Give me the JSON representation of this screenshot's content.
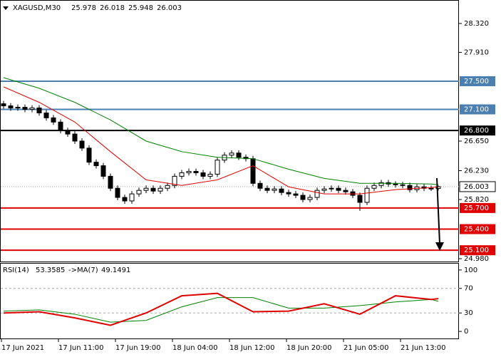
{
  "chart_data": {
    "type": "candlestick",
    "symbol": "XAGUSD,M30",
    "open": [
      27.18,
      27.15,
      27.12,
      27.13,
      27.1,
      27.12,
      27.05,
      26.98,
      26.92,
      26.8,
      26.75,
      26.65,
      26.55,
      26.35,
      26.3,
      26.15,
      25.98,
      25.85,
      25.8,
      25.9,
      25.95,
      25.98,
      25.94,
      25.98,
      26.02,
      26.15,
      26.2,
      26.22,
      26.2,
      26.15,
      26.18,
      26.38,
      26.45,
      26.48,
      26.42,
      26.4,
      26.05,
      25.98,
      25.95,
      25.97,
      25.92,
      25.9,
      25.88,
      25.82,
      25.85,
      25.95,
      25.97,
      25.98,
      25.95,
      25.93,
      25.88,
      25.78,
      25.98,
      26.02,
      26.06,
      26.04,
      26.03,
      26.02,
      25.96,
      26.0,
      25.98,
      25.978
    ],
    "high": [
      27.22,
      27.19,
      27.17,
      27.17,
      27.16,
      27.16,
      27.09,
      27.02,
      26.96,
      26.84,
      26.79,
      26.69,
      26.59,
      26.39,
      26.34,
      26.19,
      26.02,
      25.89,
      25.94,
      25.99,
      26.02,
      26.02,
      26.02,
      26.06,
      26.19,
      26.24,
      26.26,
      26.26,
      26.24,
      26.22,
      26.42,
      26.49,
      26.52,
      26.52,
      26.46,
      26.44,
      26.09,
      26.02,
      26.01,
      26.01,
      25.96,
      25.94,
      25.92,
      25.89,
      25.99,
      26.01,
      26.02,
      26.02,
      25.99,
      25.97,
      25.92,
      26.02,
      26.06,
      26.1,
      26.1,
      26.08,
      26.07,
      26.06,
      26.04,
      26.04,
      26.02,
      26.018
    ],
    "low": [
      27.11,
      27.08,
      27.08,
      27.06,
      27.06,
      27.01,
      26.94,
      26.88,
      26.76,
      26.71,
      26.61,
      26.51,
      26.31,
      26.26,
      26.11,
      25.94,
      25.81,
      25.76,
      25.76,
      25.86,
      25.91,
      25.9,
      25.9,
      25.94,
      25.98,
      26.11,
      26.16,
      26.16,
      26.11,
      26.11,
      26.14,
      26.34,
      26.41,
      26.38,
      26.36,
      26.01,
      25.94,
      25.91,
      25.91,
      25.88,
      25.86,
      25.84,
      25.78,
      25.78,
      25.81,
      25.91,
      25.93,
      25.91,
      25.89,
      25.84,
      25.66,
      25.74,
      25.94,
      25.98,
      26.0,
      25.99,
      25.98,
      25.92,
      25.92,
      25.94,
      25.94,
      25.948
    ],
    "close": [
      27.15,
      27.12,
      27.13,
      27.1,
      27.12,
      27.05,
      26.98,
      26.92,
      26.8,
      26.75,
      26.65,
      26.55,
      26.35,
      26.3,
      26.15,
      25.98,
      25.85,
      25.8,
      25.9,
      25.95,
      25.98,
      25.94,
      25.98,
      26.02,
      26.15,
      26.2,
      26.22,
      26.2,
      26.15,
      26.18,
      26.38,
      26.45,
      26.48,
      26.42,
      26.4,
      26.05,
      25.98,
      25.95,
      25.97,
      25.92,
      25.9,
      25.88,
      25.82,
      25.85,
      25.95,
      25.97,
      25.98,
      25.95,
      25.93,
      25.88,
      25.78,
      25.98,
      26.02,
      26.06,
      26.04,
      26.03,
      26.02,
      25.96,
      26.0,
      25.98,
      25.978,
      26.003
    ],
    "ylim": [
      24.94,
      28.643
    ],
    "yticks": [
      {
        "value": 28.32,
        "label": "28.320"
      },
      {
        "value": 27.91,
        "label": "27.910"
      },
      {
        "value": 26.65,
        "label": "26.650"
      },
      {
        "value": 26.23,
        "label": "26.230"
      },
      {
        "value": 25.82,
        "label": "25.820"
      },
      {
        "value": 24.98,
        "label": "24.980"
      }
    ],
    "levels": [
      {
        "value": 27.5,
        "label": "27.500",
        "color": "#4a7fb0"
      },
      {
        "value": 27.1,
        "label": "27.100",
        "color": "#4a7fb0"
      },
      {
        "value": 26.8,
        "label": "26.800",
        "color": "#000000"
      },
      {
        "value": 25.7,
        "label": "25.700",
        "color": "#e00000"
      },
      {
        "value": 25.4,
        "label": "25.400",
        "color": "#e00000"
      },
      {
        "value": 25.1,
        "label": "25.100",
        "color": "#e00000"
      }
    ],
    "ma_x": [
      0,
      5,
      10,
      15,
      20,
      25,
      30,
      35,
      40,
      45,
      50,
      55,
      60,
      61
    ],
    "moving_averages": [
      {
        "color": "#e00000",
        "values": [
          27.42,
          27.2,
          26.92,
          26.5,
          26.1,
          26.02,
          26.1,
          26.3,
          26.0,
          25.9,
          25.9,
          25.96,
          25.99,
          26.0
        ]
      },
      {
        "color": "#008000",
        "values": [
          27.55,
          27.4,
          27.2,
          26.95,
          26.65,
          26.5,
          26.42,
          26.4,
          26.25,
          26.12,
          26.05,
          26.05,
          26.04,
          26.03
        ]
      }
    ],
    "x_labels": [
      "17 Jun 2021",
      "17 Jun 11:00",
      "17 Jun 19:00",
      "18 Jun 04:00",
      "18 Jun 12:00",
      "18 Jun 20:00",
      "21 Jun 05:00",
      "21 Jun 13:00"
    ],
    "rsi": {
      "name": "RSI(14)",
      "color": "#e00000",
      "x": [
        0,
        5,
        10,
        15,
        20,
        25,
        30,
        35,
        40,
        45,
        50,
        55,
        60,
        61
      ],
      "values": [
        30,
        32,
        22,
        10,
        30,
        58,
        62,
        32,
        33,
        45,
        28,
        58,
        52,
        53.3585
      ],
      "ma_name": "->MA(7)",
      "ma_color": "#008000",
      "ma_values": [
        33,
        35,
        28,
        15,
        18,
        40,
        55,
        55,
        38,
        38,
        42,
        48,
        52,
        49.1491
      ],
      "ylim": [
        -11.5,
        110.3
      ],
      "yticks": [
        0,
        30,
        70,
        100
      ],
      "levels": [
        30,
        70
      ]
    }
  }
}
